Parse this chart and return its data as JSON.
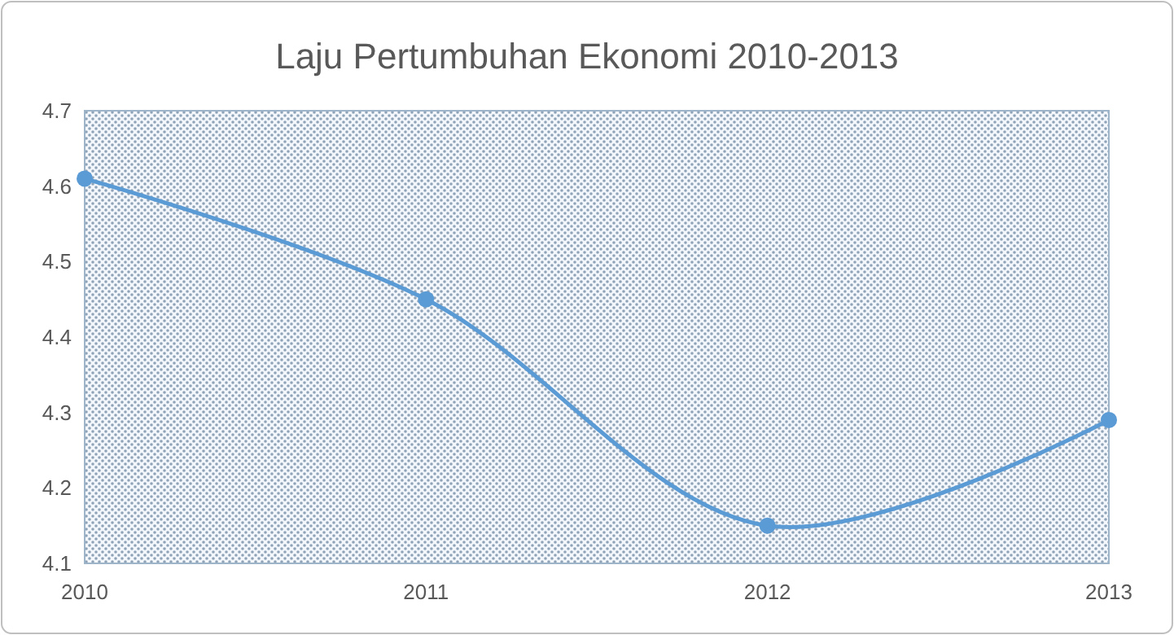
{
  "chart_data": {
    "type": "line",
    "title": "Laju Pertumbuhan Ekonomi 2010-2013",
    "x": [
      2010,
      2011,
      2012,
      2013
    ],
    "series": [
      {
        "color": "#5b9bd5",
        "values": [
          4.61,
          4.45,
          4.15,
          4.29
        ]
      }
    ],
    "xlim": [
      2010,
      2013
    ],
    "xticks": [
      2010,
      2011,
      2012,
      2013
    ],
    "ylim": [
      4.1,
      4.7
    ],
    "yticks": [
      4.1,
      4.2,
      4.3,
      4.4,
      4.5,
      4.6,
      4.7
    ],
    "marker": "circle",
    "line_style": "solid"
  }
}
